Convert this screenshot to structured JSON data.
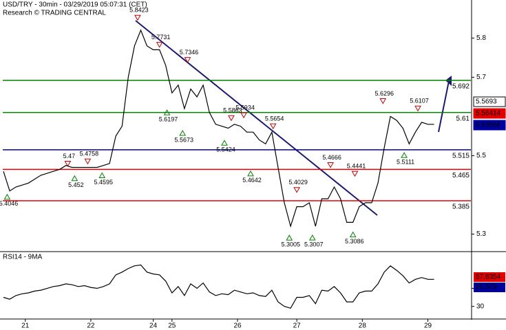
{
  "chart_data": {
    "type": "line",
    "title": "USD/TRY - 30min - 03/29/2019 05:07:31 (CET)",
    "subtitle": "Research © TRADING CENTRAL",
    "xlim": [
      0,
      75
    ],
    "xticks": [
      {
        "value": 3.5,
        "label": "21"
      },
      {
        "value": 14,
        "label": "22"
      },
      {
        "value": 24,
        "label": "24"
      },
      {
        "value": 27,
        "label": "25"
      },
      {
        "value": 37.5,
        "label": "26"
      },
      {
        "value": 47,
        "label": "27"
      },
      {
        "value": 57.5,
        "label": "28"
      },
      {
        "value": 68,
        "label": "29"
      }
    ],
    "ylim": [
      5.257,
      5.897
    ],
    "yticks": [
      5.8,
      5.7,
      5.5,
      5.3
    ],
    "series": [
      {
        "name": "USD/TRY",
        "color": "#000000",
        "values": [
          5.46,
          5.41,
          5.42,
          5.425,
          5.43,
          5.44,
          5.45,
          5.455,
          5.46,
          5.465,
          5.475,
          5.47,
          5.47,
          5.47,
          5.47,
          5.47,
          5.475,
          5.48,
          5.55,
          5.575,
          5.7,
          5.78,
          5.82,
          5.78,
          5.77,
          5.77,
          5.73,
          5.66,
          5.68,
          5.62,
          5.67,
          5.65,
          5.68,
          5.61,
          5.58,
          5.575,
          5.57,
          5.58,
          5.575,
          5.56,
          5.56,
          5.54,
          5.53,
          5.56,
          5.47,
          5.38,
          5.32,
          5.37,
          5.37,
          5.38,
          5.32,
          5.39,
          5.39,
          5.42,
          5.39,
          5.33,
          5.33,
          5.37,
          5.38,
          5.38,
          5.43,
          5.52,
          5.6,
          5.59,
          5.57,
          5.53,
          5.56,
          5.585,
          5.58,
          5.58
        ]
      }
    ],
    "levels": [
      {
        "value": 5.692,
        "color": "#008000"
      },
      {
        "value": 5.61,
        "color": "#008000"
      },
      {
        "value": 5.515,
        "color": "#0000a0"
      },
      {
        "value": 5.465,
        "color": "#e00000"
      },
      {
        "value": 5.385,
        "color": "#e00000"
      }
    ],
    "highs": [
      {
        "x": 21.5,
        "value": 5.8423
      },
      {
        "x": 25,
        "value": 5.7731
      },
      {
        "x": 29.5,
        "value": 5.7346
      },
      {
        "x": 10.3,
        "value": 5.47
      },
      {
        "x": 13.5,
        "value": 5.4758
      },
      {
        "x": 36.5,
        "value": 5.5863
      },
      {
        "x": 38.5,
        "value": 5.5934
      },
      {
        "x": 43.2,
        "value": 5.5654
      },
      {
        "x": 47,
        "value": 5.4029
      },
      {
        "x": 52.4,
        "value": 5.4666
      },
      {
        "x": 56.3,
        "value": 5.4441
      },
      {
        "x": 60.8,
        "value": 5.6296
      },
      {
        "x": 66.4,
        "value": 5.6107
      }
    ],
    "lows": [
      {
        "x": 0.6,
        "value": 5.4046
      },
      {
        "x": 11.4,
        "value": 5.452
      },
      {
        "x": 15.8,
        "value": 5.4595
      },
      {
        "x": 26.2,
        "value": 5.6197
      },
      {
        "x": 28.7,
        "value": 5.5673
      },
      {
        "x": 35.4,
        "value": 5.5424
      },
      {
        "x": 39.6,
        "value": 5.4642
      },
      {
        "x": 45.8,
        "value": 5.3005
      },
      {
        "x": 49.5,
        "value": 5.3007
      },
      {
        "x": 56,
        "value": 5.3086
      },
      {
        "x": 64.2,
        "value": 5.5111
      }
    ],
    "price_boxes": [
      {
        "value": 5.5693,
        "color": "#000000"
      },
      {
        "value": 5.56414,
        "color": "#e00000"
      },
      {
        "value": 5.53566,
        "color": "#0000a0"
      }
    ]
  },
  "rsi_chart": {
    "type": "line",
    "title": "RSI14 - 9MA",
    "ylim": [
      16,
      90
    ],
    "yticks": [
      30,
      50
    ],
    "series": [
      {
        "name": "RSI14",
        "color": "#000000",
        "values": [
          40,
          38,
          42,
          44,
          45,
          47,
          48,
          50,
          52,
          53,
          55,
          54,
          52,
          53,
          51,
          50,
          52,
          55,
          65,
          68,
          72,
          75,
          76,
          68,
          66,
          65,
          58,
          45,
          52,
          42,
          55,
          50,
          56,
          46,
          42,
          44,
          43,
          48,
          46,
          44,
          45,
          42,
          41,
          48,
          35,
          30,
          28,
          40,
          40,
          42,
          33,
          48,
          47,
          52,
          45,
          35,
          35,
          45,
          47,
          47,
          55,
          68,
          75,
          70,
          64,
          56,
          60,
          62,
          60,
          60
        ]
      }
    ],
    "value_boxes": [
      {
        "value": 57.8354,
        "color": "#e00000"
      },
      {
        "value": 55.579,
        "color": "#0000a0"
      }
    ]
  }
}
